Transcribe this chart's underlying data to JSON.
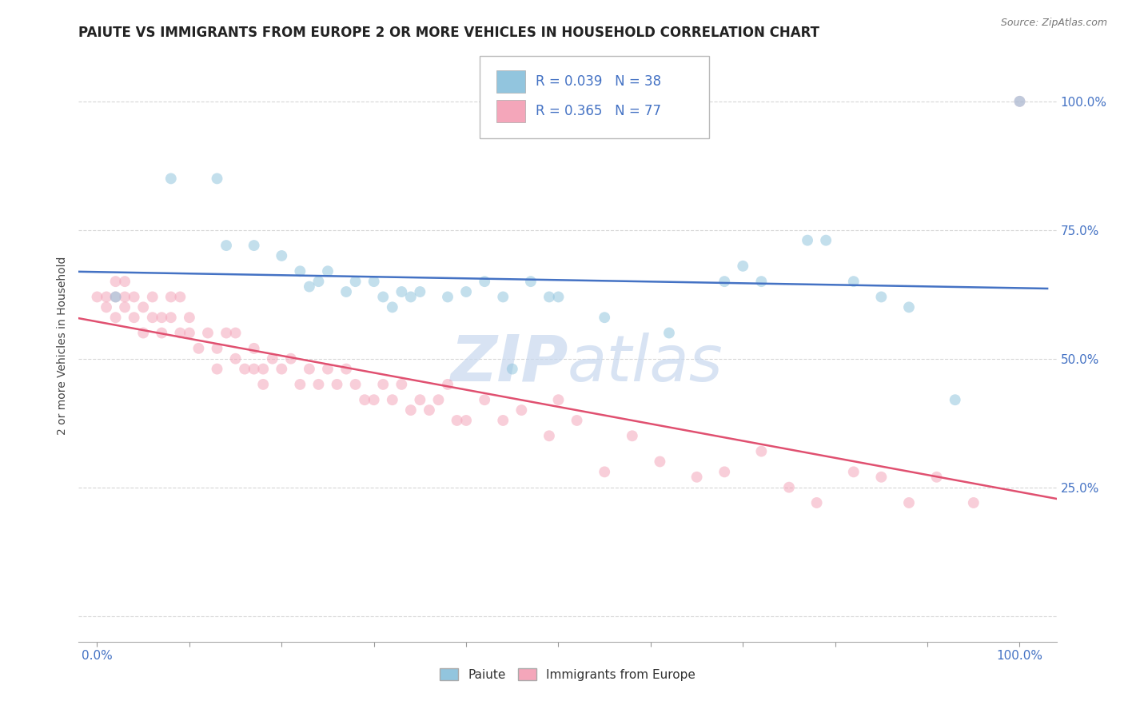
{
  "title": "PAIUTE VS IMMIGRANTS FROM EUROPE 2 OR MORE VEHICLES IN HOUSEHOLD CORRELATION CHART",
  "source_text": "Source: ZipAtlas.com",
  "ylabel": "2 or more Vehicles in Household",
  "blue_color": "#92C5DE",
  "pink_color": "#F4A6BA",
  "blue_line_color": "#4472C4",
  "pink_line_color": "#E05070",
  "watermark_color": "#C8D8EE",
  "background_color": "#ffffff",
  "grid_color": "#cccccc",
  "title_fontsize": 12,
  "axis_label_fontsize": 10,
  "tick_label_fontsize": 11,
  "marker_size": 100,
  "marker_alpha": 0.55,
  "line_width": 1.8,
  "paiute_x": [
    0.02,
    0.08,
    0.13,
    0.14,
    0.17,
    0.2,
    0.22,
    0.23,
    0.24,
    0.25,
    0.27,
    0.28,
    0.3,
    0.31,
    0.32,
    0.33,
    0.34,
    0.35,
    0.38,
    0.4,
    0.42,
    0.44,
    0.45,
    0.47,
    0.49,
    0.5,
    0.55,
    0.62,
    0.68,
    0.7,
    0.72,
    0.77,
    0.79,
    0.82,
    0.85,
    0.88,
    0.93,
    1.0
  ],
  "paiute_y": [
    0.62,
    0.85,
    0.85,
    0.72,
    0.72,
    0.7,
    0.67,
    0.64,
    0.65,
    0.67,
    0.63,
    0.65,
    0.65,
    0.62,
    0.6,
    0.63,
    0.62,
    0.63,
    0.62,
    0.63,
    0.65,
    0.62,
    0.48,
    0.65,
    0.62,
    0.62,
    0.58,
    0.55,
    0.65,
    0.68,
    0.65,
    0.73,
    0.73,
    0.65,
    0.62,
    0.6,
    0.42,
    1.0
  ],
  "europe_x": [
    0.0,
    0.01,
    0.01,
    0.02,
    0.02,
    0.02,
    0.03,
    0.03,
    0.03,
    0.04,
    0.04,
    0.05,
    0.05,
    0.06,
    0.06,
    0.07,
    0.07,
    0.08,
    0.08,
    0.09,
    0.09,
    0.1,
    0.1,
    0.11,
    0.12,
    0.13,
    0.13,
    0.14,
    0.15,
    0.15,
    0.16,
    0.17,
    0.17,
    0.18,
    0.18,
    0.19,
    0.2,
    0.21,
    0.22,
    0.23,
    0.24,
    0.25,
    0.26,
    0.27,
    0.28,
    0.29,
    0.3,
    0.31,
    0.32,
    0.33,
    0.34,
    0.35,
    0.36,
    0.37,
    0.38,
    0.39,
    0.4,
    0.42,
    0.44,
    0.46,
    0.49,
    0.5,
    0.52,
    0.55,
    0.58,
    0.61,
    0.65,
    0.68,
    0.72,
    0.75,
    0.78,
    0.82,
    0.85,
    0.88,
    0.91,
    0.95,
    1.0
  ],
  "europe_y": [
    0.62,
    0.62,
    0.6,
    0.65,
    0.62,
    0.58,
    0.65,
    0.6,
    0.62,
    0.62,
    0.58,
    0.6,
    0.55,
    0.62,
    0.58,
    0.58,
    0.55,
    0.62,
    0.58,
    0.62,
    0.55,
    0.58,
    0.55,
    0.52,
    0.55,
    0.52,
    0.48,
    0.55,
    0.55,
    0.5,
    0.48,
    0.52,
    0.48,
    0.48,
    0.45,
    0.5,
    0.48,
    0.5,
    0.45,
    0.48,
    0.45,
    0.48,
    0.45,
    0.48,
    0.45,
    0.42,
    0.42,
    0.45,
    0.42,
    0.45,
    0.4,
    0.42,
    0.4,
    0.42,
    0.45,
    0.38,
    0.38,
    0.42,
    0.38,
    0.4,
    0.35,
    0.42,
    0.38,
    0.28,
    0.35,
    0.3,
    0.27,
    0.28,
    0.32,
    0.25,
    0.22,
    0.28,
    0.27,
    0.22,
    0.27,
    0.22,
    1.0
  ],
  "xlim": [
    -0.02,
    1.04
  ],
  "ylim": [
    -0.05,
    1.1
  ],
  "y_ticks": [
    0.0,
    0.25,
    0.5,
    0.75,
    1.0
  ],
  "y_tick_labels_right": [
    "",
    "25.0%",
    "50.0%",
    "75.0%",
    "100.0%"
  ],
  "x_ticks": [
    0.0,
    0.1,
    0.2,
    0.3,
    0.4,
    0.5,
    0.6,
    0.7,
    0.8,
    0.9,
    1.0
  ],
  "tick_color": "#4472C4"
}
